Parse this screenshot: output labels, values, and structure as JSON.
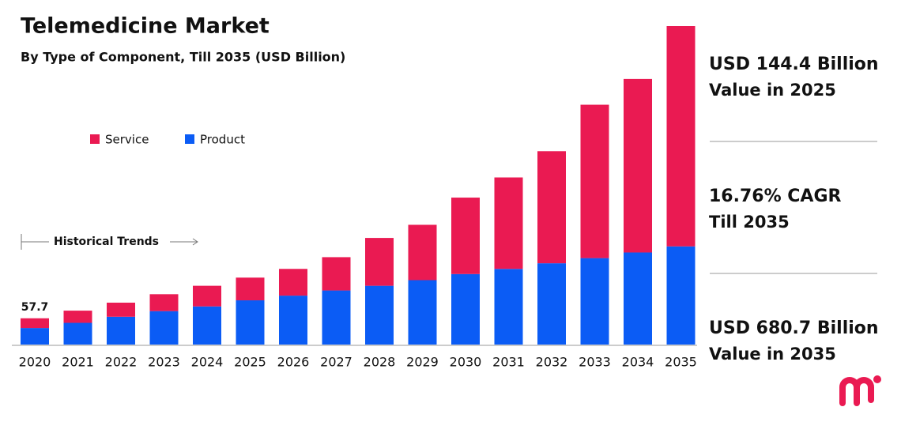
{
  "chart_data": {
    "type": "stacked-bar",
    "title": "Telemedicine Market",
    "subtitle": "By Type of Component, Till 2035 (USD Billion)",
    "categories": [
      "2020",
      "2021",
      "2022",
      "2023",
      "2024",
      "2025",
      "2026",
      "2027",
      "2028",
      "2029",
      "2030",
      "2031",
      "2032",
      "2033",
      "2034",
      "2035"
    ],
    "series": [
      {
        "name": "Product",
        "color": "#0b5cf5",
        "values": [
          36.9,
          48,
          61,
          73,
          83,
          96,
          106,
          117,
          127,
          139,
          152,
          163,
          175,
          186,
          198,
          211
        ]
      },
      {
        "name": "Service",
        "color": "#ea1a52",
        "values": [
          20.8,
          26,
          30,
          36,
          44,
          48.4,
          57,
          71,
          102,
          118,
          163,
          195,
          239,
          327,
          370,
          469.7
        ]
      }
    ],
    "legend_order": [
      "Service",
      "Product"
    ],
    "annotations": [
      "57.7",
      "Historical Trends"
    ],
    "highlights": [
      {
        "value": "USD 144.4 Billion",
        "label": "Value in 2025"
      },
      {
        "value": "16.76% CAGR",
        "label": "Till 2035"
      },
      {
        "value": "USD 680.7 Billion",
        "label": "Value in 2035"
      }
    ]
  }
}
